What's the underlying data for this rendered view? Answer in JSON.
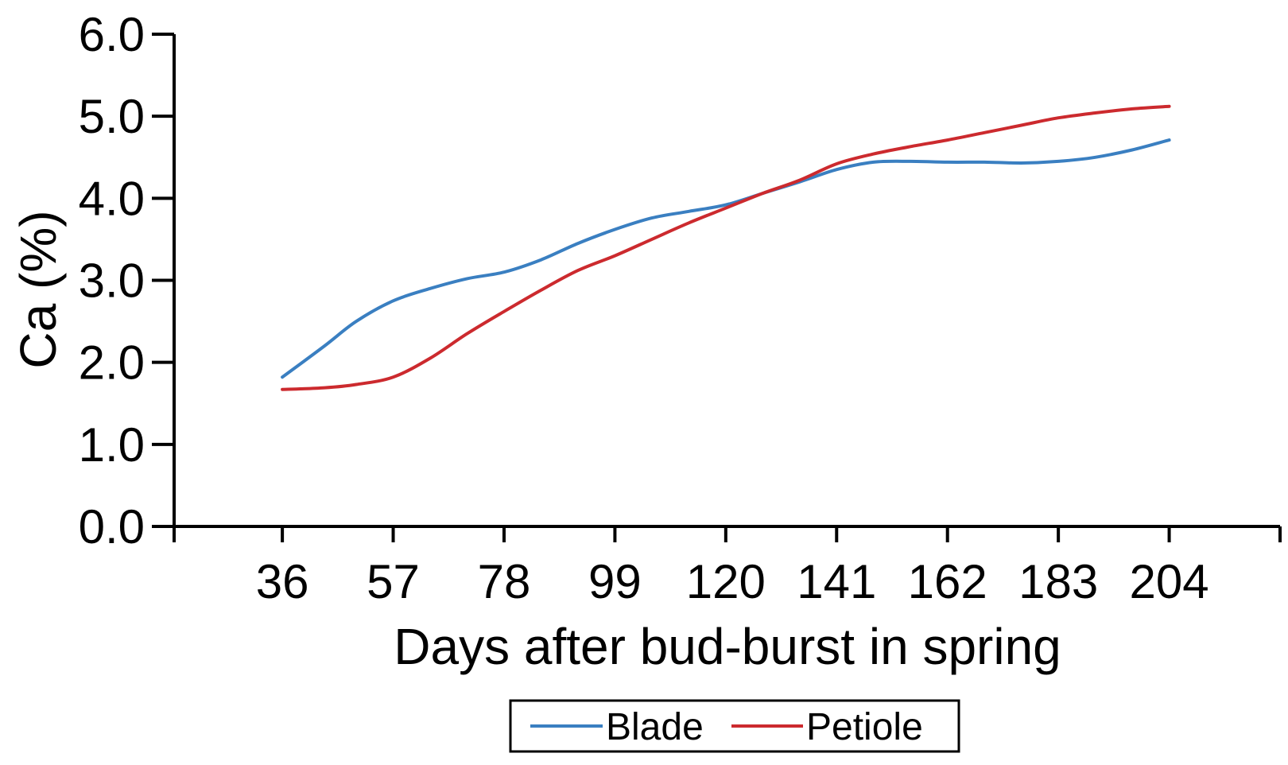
{
  "chart_data": {
    "type": "line",
    "title": "",
    "xlabel": "Days after bud-burst in spring",
    "ylabel": "Ca (%)",
    "x_ticks": [
      36,
      57,
      78,
      99,
      120,
      141,
      162,
      183,
      204
    ],
    "y_ticks": [
      "0.0",
      "1.0",
      "2.0",
      "3.0",
      "4.0",
      "5.0",
      "6.0"
    ],
    "xlim": [
      15.5,
      225
    ],
    "ylim": [
      0,
      6
    ],
    "grid": false,
    "legend_position": "bottom",
    "series": [
      {
        "name": "Blade",
        "color": "#3a7fc1",
        "x": [
          36,
          44,
          50,
          57,
          64,
          71,
          78,
          85,
          92,
          99,
          106,
          113,
          120,
          127,
          134,
          141,
          148,
          155,
          162,
          169,
          176,
          183,
          190,
          197,
          204
        ],
        "y": [
          1.82,
          2.2,
          2.5,
          2.75,
          2.9,
          3.02,
          3.1,
          3.25,
          3.45,
          3.62,
          3.76,
          3.84,
          3.92,
          4.06,
          4.2,
          4.35,
          4.44,
          4.45,
          4.44,
          4.44,
          4.43,
          4.45,
          4.5,
          4.59,
          4.71
        ]
      },
      {
        "name": "Petiole",
        "color": "#cc2a2e",
        "x": [
          36,
          44,
          50,
          57,
          64,
          71,
          78,
          85,
          92,
          99,
          106,
          113,
          120,
          127,
          134,
          141,
          148,
          155,
          162,
          169,
          176,
          183,
          190,
          197,
          204
        ],
        "y": [
          1.67,
          1.69,
          1.73,
          1.82,
          2.05,
          2.35,
          2.62,
          2.88,
          3.12,
          3.3,
          3.5,
          3.7,
          3.88,
          4.06,
          4.22,
          4.42,
          4.54,
          4.63,
          4.71,
          4.8,
          4.89,
          4.98,
          5.04,
          5.09,
          5.12
        ]
      }
    ]
  }
}
